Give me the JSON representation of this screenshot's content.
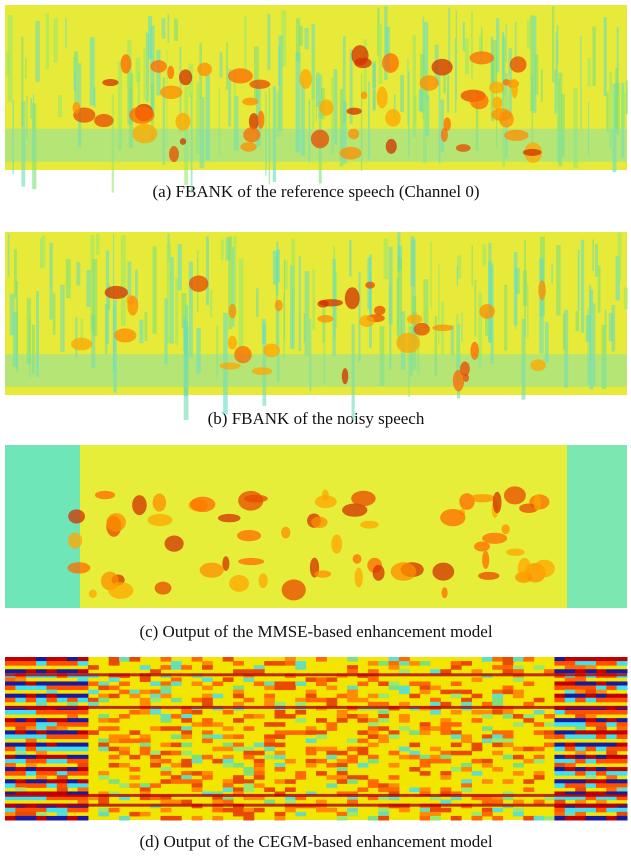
{
  "panels": [
    {
      "caption": "(a)  FBANK of the reference speech (Channel 0)"
    },
    {
      "caption": "(b)  FBANK of the noisy speech"
    },
    {
      "caption": "(c)  Output of the MMSE-based enhancement model"
    },
    {
      "caption": "(d)  Output of the CEGM-based enhancement model"
    }
  ]
}
